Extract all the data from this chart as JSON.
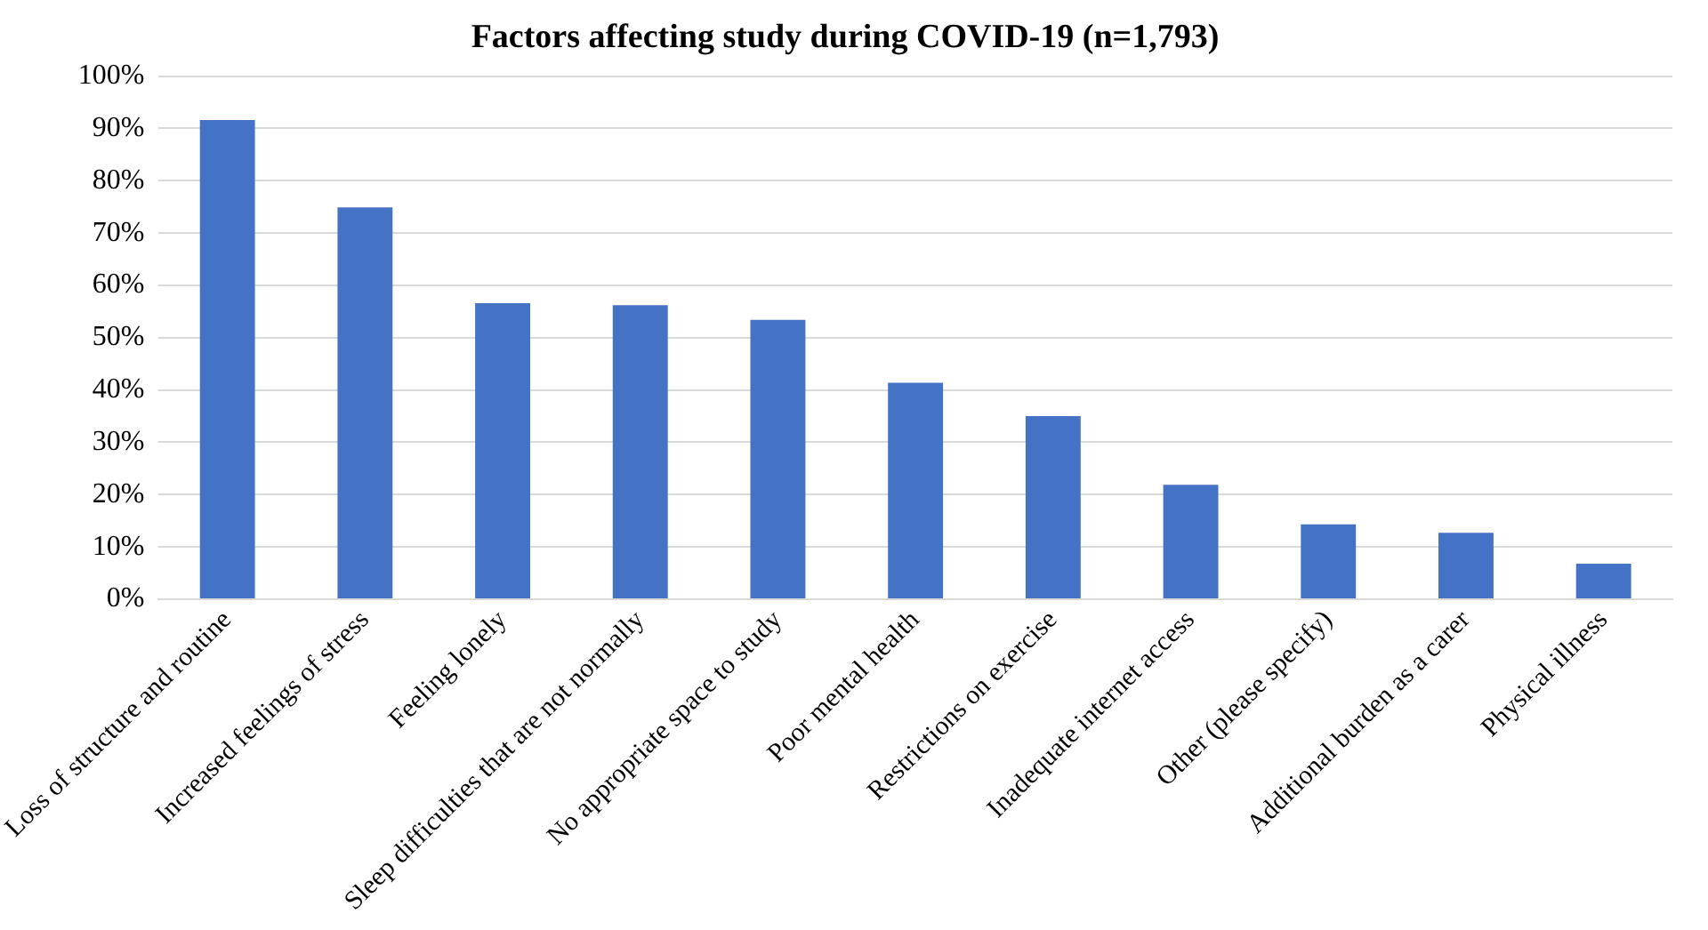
{
  "chart_data": {
    "type": "bar",
    "title": "Factors affecting study during COVID-19 (n=1,793)",
    "categories": [
      "Loss of structure and routine",
      "Increased feelings of stress",
      "Feeling lonely",
      "Sleep difficulties that are not normally",
      "No appropriate space to study",
      "Poor mental health",
      "Restrictions on exercise",
      "Inadequate internet access",
      "Other (please specify)",
      "Additional burden as a carer",
      "Physical illness"
    ],
    "values": [
      91.6,
      74.9,
      56.6,
      56.2,
      53.4,
      41.4,
      35,
      21.9,
      14.3,
      12.7,
      6.8
    ],
    "color": "#4472c4",
    "ylim": [
      0,
      100
    ],
    "yticks": [
      {
        "value": 0,
        "label": "0%"
      },
      {
        "value": 10,
        "label": "10%"
      },
      {
        "value": 20,
        "label": "20%"
      },
      {
        "value": 30,
        "label": "30%"
      },
      {
        "value": 40,
        "label": "40%"
      },
      {
        "value": 50,
        "label": "50%"
      },
      {
        "value": 60,
        "label": "60%"
      },
      {
        "value": 70,
        "label": "70%"
      },
      {
        "value": 80,
        "label": "80%"
      },
      {
        "value": 90,
        "label": "90%"
      },
      {
        "value": 100,
        "label": "100%"
      }
    ],
    "grid": "y"
  }
}
